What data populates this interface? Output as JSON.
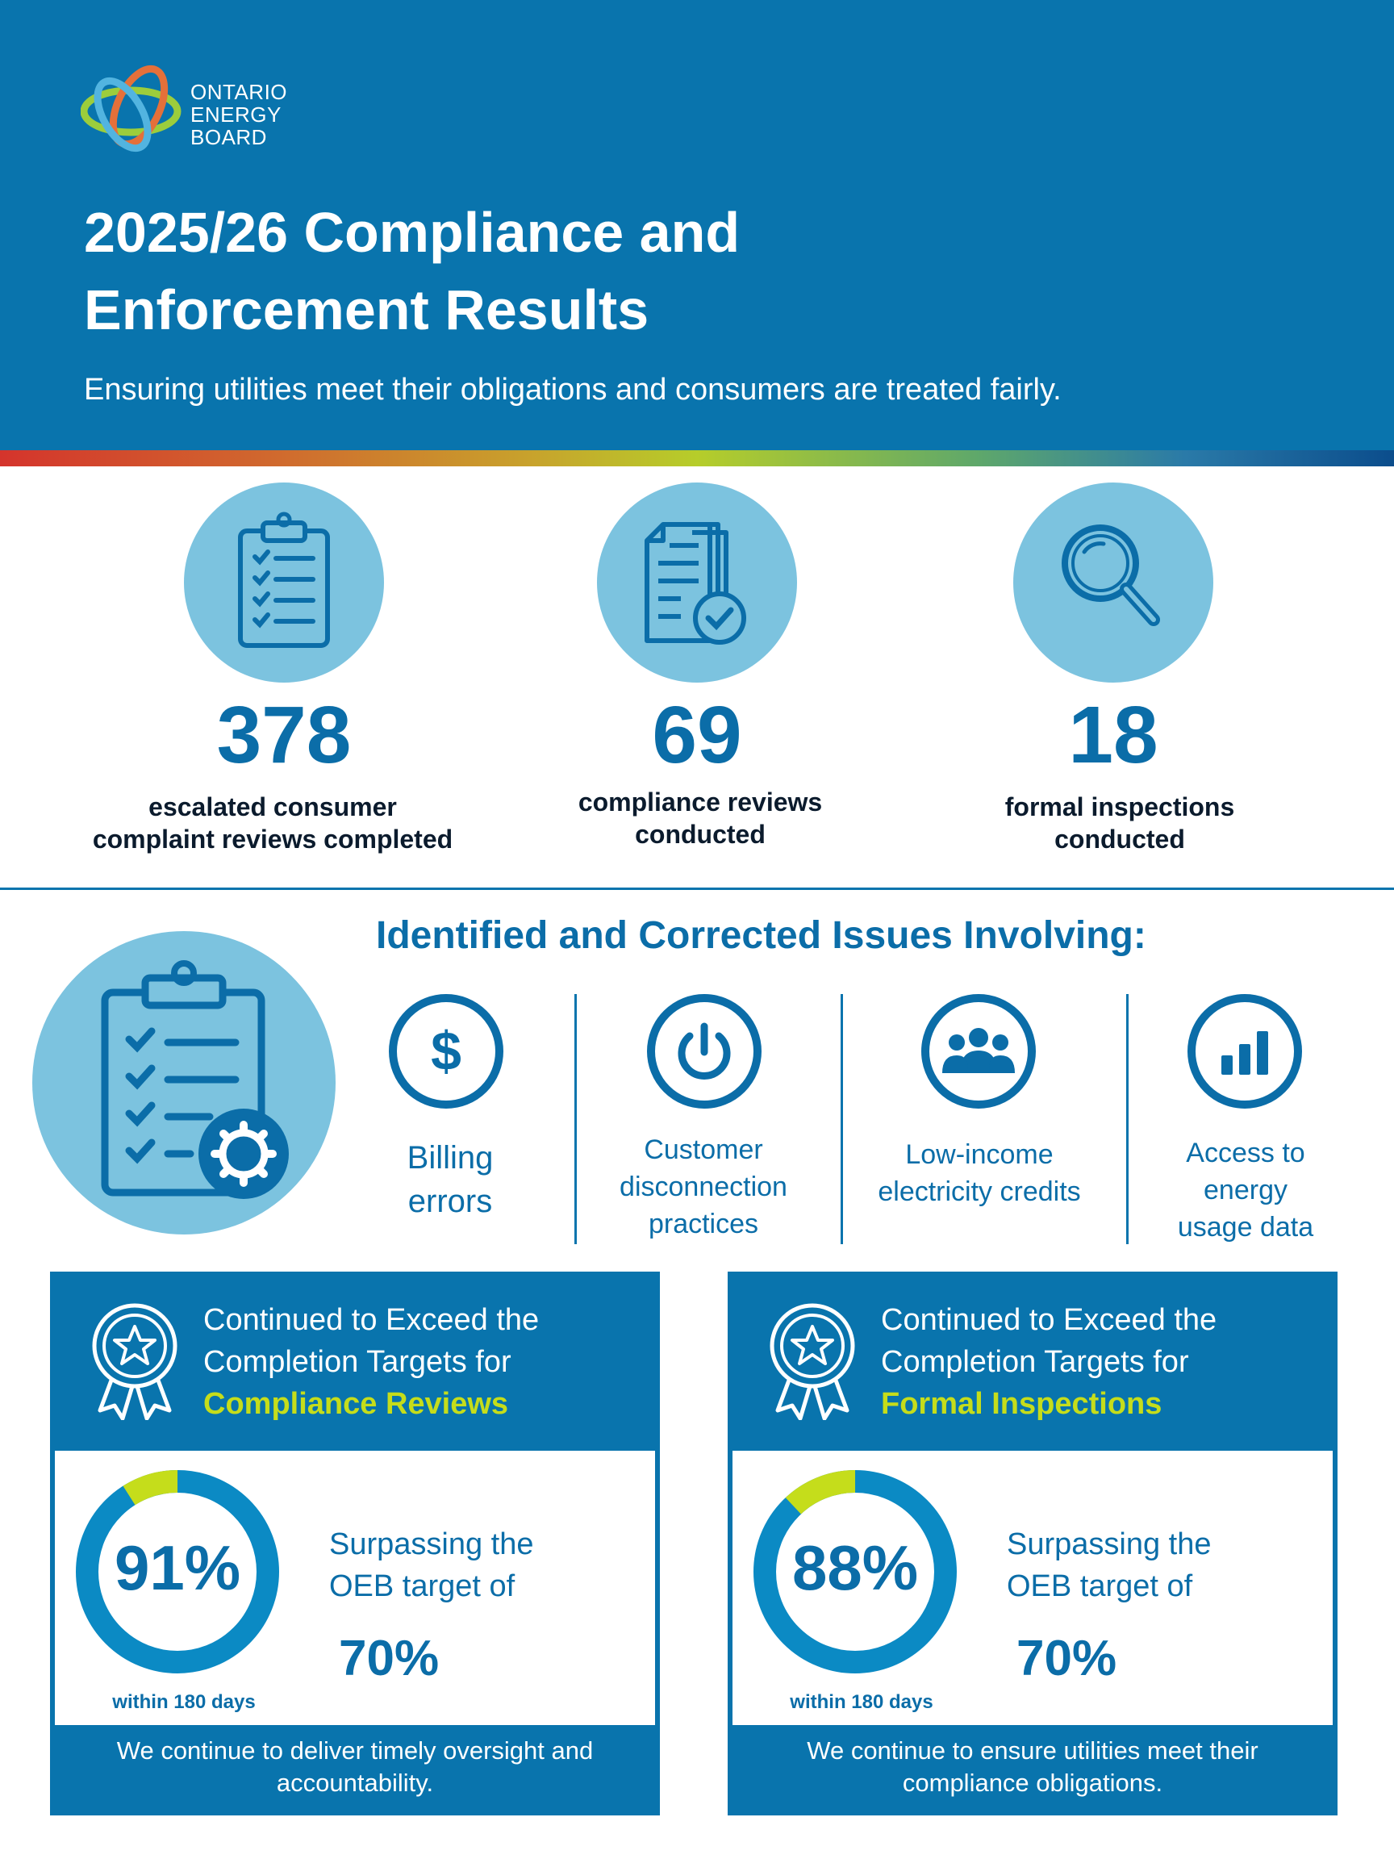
{
  "logo": {
    "lines": [
      "ONTARIO",
      "ENERGY",
      "BOARD"
    ]
  },
  "header": {
    "title_lines": [
      "2025/26 Compliance and",
      "Enforcement Results"
    ],
    "subtitle": "Ensuring utilities meet their obligations and consumers are treated fairly."
  },
  "stats": [
    {
      "icon": "clipboard-checklist-icon",
      "value": "378",
      "label_lines": [
        "escalated consumer",
        "complaint reviews completed"
      ]
    },
    {
      "icon": "document-check-icon",
      "value": "69",
      "label_lines": [
        "compliance reviews",
        "conducted"
      ]
    },
    {
      "icon": "magnifying-glass-icon",
      "value": "18",
      "label_lines": [
        "formal inspections",
        "conducted"
      ]
    }
  ],
  "issues": {
    "heading": "Identified and Corrected Issues Involving:",
    "items": [
      {
        "icon": "dollar-icon",
        "label_lines": [
          "Billing",
          "errors"
        ]
      },
      {
        "icon": "power-icon",
        "label_lines": [
          "Customer",
          "disconnection",
          "practices"
        ]
      },
      {
        "icon": "people-group-icon",
        "label_lines": [
          "Low-income",
          "electricity credits"
        ]
      },
      {
        "icon": "bar-chart-icon",
        "label_lines": [
          "Access to",
          "energy",
          "usage data"
        ]
      }
    ]
  },
  "cards": [
    {
      "head_lines": [
        "Continued to Exceed the",
        "Completion Targets for"
      ],
      "head_accent": "Compliance Reviews",
      "percent": "91%",
      "percent_value": 0.91,
      "within": "within 180 days",
      "surpass_lines": [
        "Surpassing the",
        "OEB target of"
      ],
      "target": "70%",
      "footer_lines": [
        "We continue to deliver timely oversight and",
        "accountability."
      ]
    },
    {
      "head_lines": [
        "Continued to Exceed the",
        "Completion Targets for"
      ],
      "head_accent": "Formal Inspections",
      "percent": "88%",
      "percent_value": 0.88,
      "within": "within 180 days",
      "surpass_lines": [
        "Surpassing the",
        "OEB target of"
      ],
      "target": "70%",
      "footer_lines": [
        "We continue to ensure utilities meet their",
        "compliance obligations."
      ]
    }
  ],
  "colors": {
    "primary": "#0974ad",
    "light": "#7cc3df",
    "accent": "#c5dd1b",
    "text_dark": "#0b1b2d"
  }
}
